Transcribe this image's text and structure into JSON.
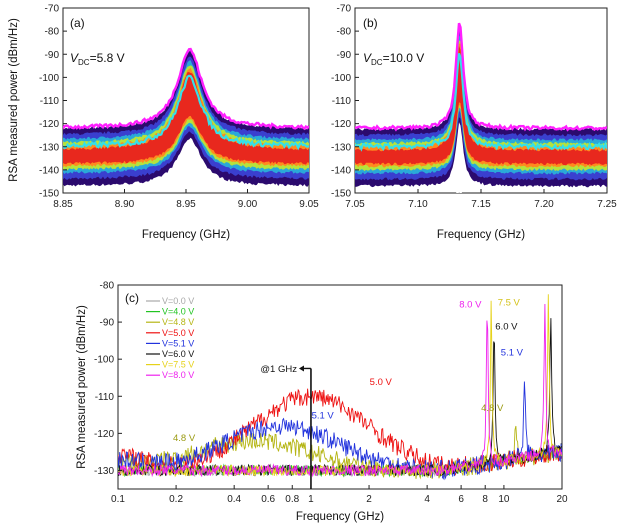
{
  "chart_data": [
    {
      "panel": "(a)",
      "type": "heatmap",
      "annotation": {
        "main": "V",
        "sub": "DC",
        "rest": "=5.8 V"
      },
      "xlabel": "Frequency (GHz)",
      "ylabel": "RSA measured power (dBm/Hz)",
      "xlim": [
        8.85,
        9.05
      ],
      "ylim": [
        -150,
        -70
      ],
      "xticks": [
        "8.85",
        "8.90",
        "8.95",
        "9.00",
        "9.05"
      ],
      "yticks": [
        "-70",
        "-80",
        "-90",
        "-100",
        "-110",
        "-120",
        "-130",
        "-140",
        "-150"
      ],
      "peak": {
        "center": 8.953,
        "width": 0.012,
        "top": -90,
        "noise_top": -124,
        "noise_mid": -130,
        "noise_bottom": -142
      }
    },
    {
      "panel": "(b)",
      "type": "heatmap",
      "annotation": {
        "main": "V",
        "sub": "DC",
        "rest": "=10.0 V"
      },
      "xlabel": "Frequency (GHz)",
      "ylabel": "",
      "xlim": [
        7.05,
        7.25
      ],
      "ylim": [
        -150,
        -70
      ],
      "xticks": [
        "7.05",
        "7.10",
        "7.15",
        "7.20",
        "7.25"
      ],
      "yticks": [
        "-70",
        "-80",
        "-90",
        "-100",
        "-110",
        "-120",
        "-130",
        "-140",
        "-150"
      ],
      "peak": {
        "center": 7.133,
        "width": 0.0035,
        "top": -78,
        "noise_top": -124,
        "noise_mid": -130,
        "noise_bottom": -142
      }
    },
    {
      "panel": "(c)",
      "type": "line",
      "xlabel": "Frequency (GHz)",
      "ylabel": "RSA measured power (dBm/Hz)",
      "xscale": "log",
      "xlim": [
        0.1,
        20
      ],
      "ylim": [
        -135,
        -80
      ],
      "xticks": [
        {
          "v": 0.1,
          "label": "0.1"
        },
        {
          "v": 0.2,
          "label": "0.2"
        },
        {
          "v": 0.4,
          "label": "0.4"
        },
        {
          "v": 0.6,
          "label": "0.6"
        },
        {
          "v": 0.8,
          "label": "0.8"
        },
        {
          "v": 1,
          "label": "1"
        },
        {
          "v": 2,
          "label": "2"
        },
        {
          "v": 4,
          "label": "4"
        },
        {
          "v": 6,
          "label": "6"
        },
        {
          "v": 8,
          "label": "8"
        },
        {
          "v": 10,
          "label": "10"
        },
        {
          "v": 20,
          "label": "20"
        }
      ],
      "yticks": [
        "-80",
        "-90",
        "-100",
        "-110",
        "-120",
        "-130"
      ],
      "legend_position": "top-left",
      "series": [
        {
          "name": "V=0.0 V",
          "color": "#a8a8a8",
          "base": -130,
          "hump": 0,
          "hump_center": 1.0,
          "peaks": []
        },
        {
          "name": "V=4.0 V",
          "color": "#22c422",
          "base": -130,
          "hump": 0,
          "hump_center": 1.0,
          "peaks": []
        },
        {
          "name": "V=4.8 V",
          "color": "#b5b514",
          "base": -130,
          "hump": 8,
          "hump_center": 0.5,
          "peaks": [
            {
              "f": 11.5,
              "h": 12
            }
          ]
        },
        {
          "name": "V=5.0 V",
          "color": "#ee1111",
          "base": -130,
          "hump": 20,
          "hump_center": 1.0,
          "peaks": []
        },
        {
          "name": "V=5.1 V",
          "color": "#2233dd",
          "base": -130,
          "hump": 12,
          "hump_center": 0.7,
          "peaks": [
            {
              "f": 12.8,
              "h": 23
            }
          ]
        },
        {
          "name": "V=6.0 V",
          "color": "#111111",
          "base": -130,
          "hump": 0,
          "hump_center": 1.0,
          "peaks": [
            {
              "f": 8.9,
              "h": 38
            },
            {
              "f": 17.5,
              "h": 38
            }
          ]
        },
        {
          "name": "V=7.5 V",
          "color": "#e6d21a",
          "base": -130,
          "hump": 0,
          "hump_center": 1.0,
          "peaks": [
            {
              "f": 8.6,
              "h": 44
            },
            {
              "f": 17.0,
              "h": 42
            }
          ]
        },
        {
          "name": "V=8.0 V",
          "color": "#ee22ee",
          "base": -130,
          "hump": 0,
          "hump_center": 1.0,
          "peaks": [
            {
              "f": 8.2,
              "h": 44
            },
            {
              "f": 16.3,
              "h": 40
            }
          ]
        }
      ],
      "labels": [
        {
          "text": "8.0 V",
          "color": "#ee22ee",
          "x": 6.7,
          "y": -86
        },
        {
          "text": "7.5 V",
          "color": "#d4c21a",
          "x": 10.6,
          "y": -85.5
        },
        {
          "text": "6.0 V",
          "color": "#111111",
          "x": 10.3,
          "y": -92
        },
        {
          "text": "5.1 V",
          "color": "#2233dd",
          "x": 11.0,
          "y": -99
        },
        {
          "text": "5.0 V",
          "color": "#ee1111",
          "x": 2.3,
          "y": -107
        },
        {
          "text": "5.1 V",
          "color": "#2233dd",
          "x": 1.15,
          "y": -116
        },
        {
          "text": "4.8 V",
          "color": "#9a9a10",
          "x": 0.22,
          "y": -122
        },
        {
          "text": "4.8 V",
          "color": "#9a9a10",
          "x": 8.7,
          "y": -114
        }
      ],
      "marker": {
        "text": "@1 GHz",
        "x": 1.0
      }
    }
  ]
}
